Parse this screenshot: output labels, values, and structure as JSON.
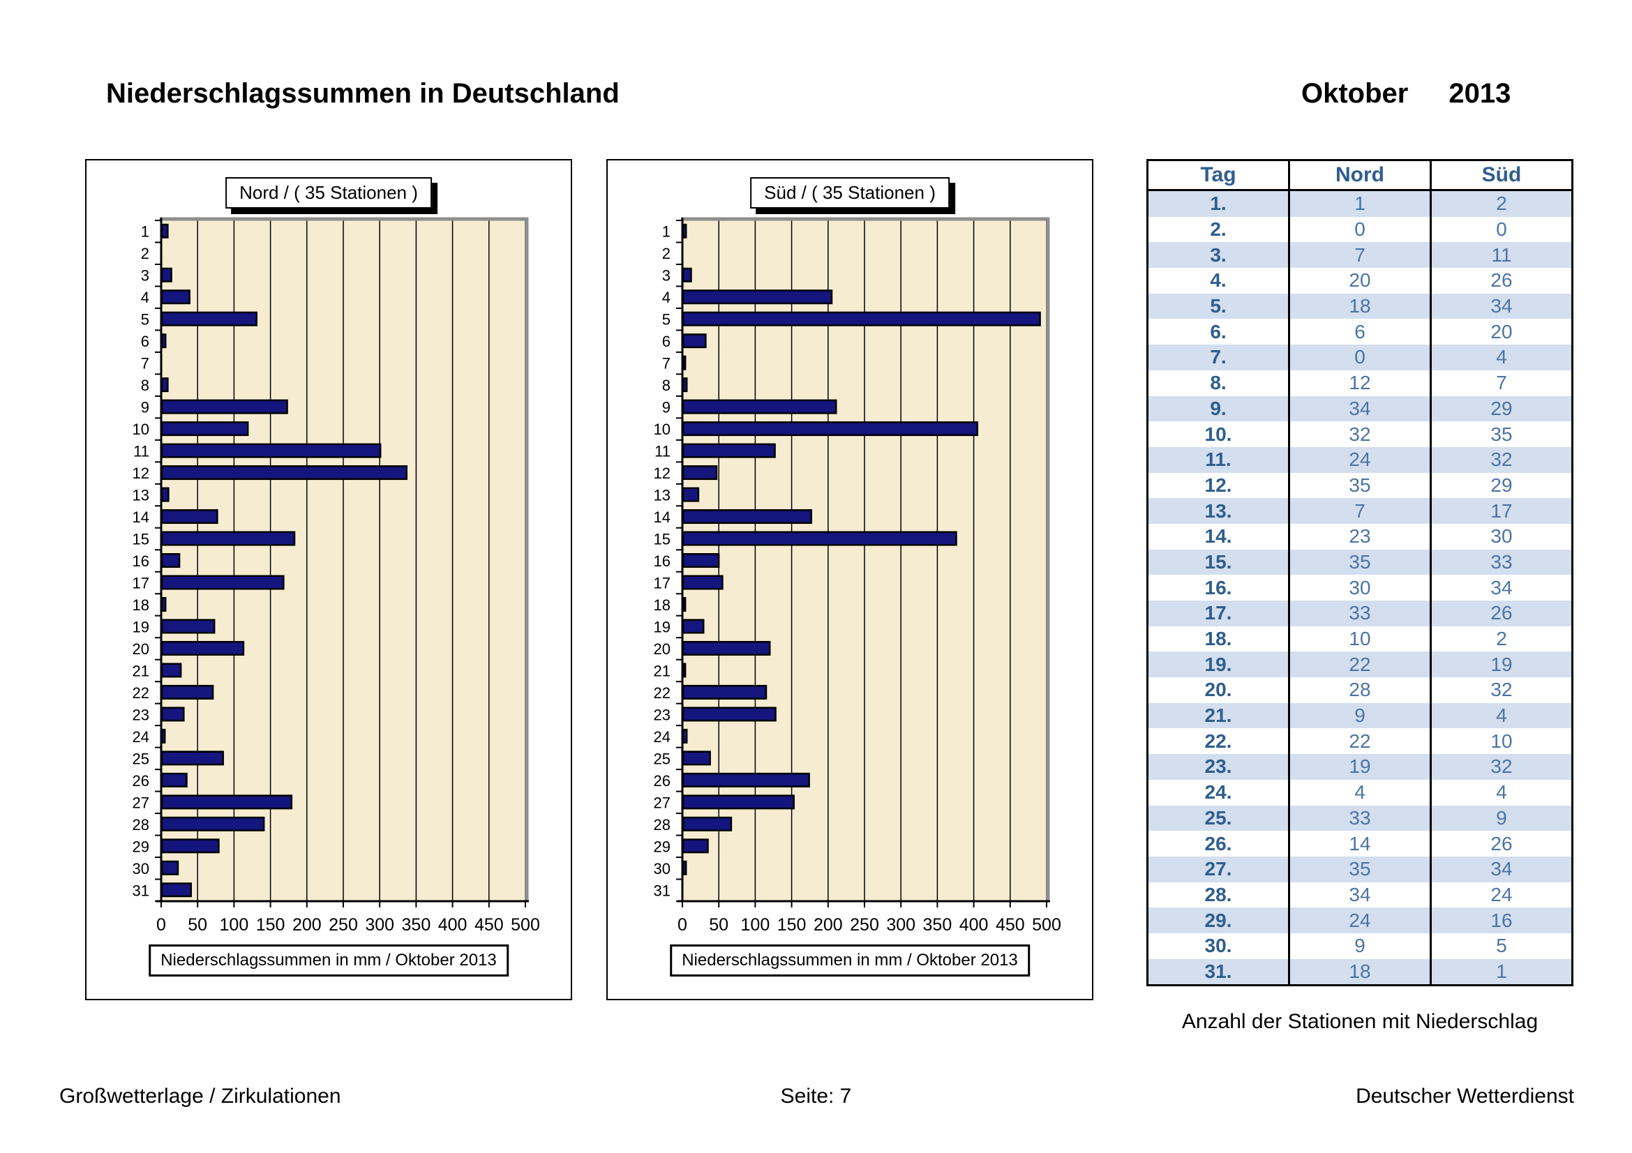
{
  "header": {
    "title": "Niederschlagssummen in Deutschland",
    "month": "Oktober",
    "year": "2013"
  },
  "chart_data": [
    {
      "type": "bar",
      "orientation": "horizontal",
      "title": "Nord / ( 35 Stationen )",
      "xlabel": "Niederschlagssummen in mm / Oktober 2013",
      "xlim": [
        0,
        500
      ],
      "x_ticks": [
        0,
        50,
        100,
        150,
        200,
        250,
        300,
        350,
        400,
        450,
        500
      ],
      "grid": true,
      "categories": [
        1,
        2,
        3,
        4,
        5,
        6,
        7,
        8,
        9,
        10,
        11,
        12,
        13,
        14,
        15,
        16,
        17,
        18,
        19,
        20,
        21,
        22,
        23,
        24,
        25,
        26,
        27,
        28,
        29,
        30,
        31
      ],
      "values": [
        8,
        0,
        13,
        38,
        130,
        5,
        0,
        8,
        172,
        118,
        300,
        336,
        9,
        76,
        182,
        24,
        167,
        5,
        72,
        112,
        26,
        70,
        30,
        4,
        84,
        34,
        178,
        140,
        78,
        22,
        40
      ]
    },
    {
      "type": "bar",
      "orientation": "horizontal",
      "title": "Süd / ( 35 Stationen )",
      "xlabel": "Niederschlagssummen in mm / Oktober 2013",
      "xlim": [
        0,
        500
      ],
      "x_ticks": [
        0,
        50,
        100,
        150,
        200,
        250,
        300,
        350,
        400,
        450,
        500
      ],
      "grid": true,
      "categories": [
        1,
        2,
        3,
        4,
        5,
        6,
        7,
        8,
        9,
        10,
        11,
        12,
        13,
        14,
        15,
        16,
        17,
        18,
        19,
        20,
        21,
        22,
        23,
        24,
        25,
        26,
        27,
        28,
        29,
        30,
        31
      ],
      "values": [
        4,
        0,
        11,
        204,
        490,
        31,
        3,
        5,
        210,
        404,
        126,
        46,
        21,
        176,
        375,
        49,
        54,
        3,
        28,
        119,
        3,
        114,
        127,
        5,
        37,
        173,
        152,
        66,
        34,
        4,
        0
      ]
    }
  ],
  "table": {
    "headers": [
      "Tag",
      "Nord",
      "Süd"
    ],
    "rows": [
      [
        "1.",
        1,
        2
      ],
      [
        "2.",
        0,
        0
      ],
      [
        "3.",
        7,
        11
      ],
      [
        "4.",
        20,
        26
      ],
      [
        "5.",
        18,
        34
      ],
      [
        "6.",
        6,
        20
      ],
      [
        "7.",
        0,
        4
      ],
      [
        "8.",
        12,
        7
      ],
      [
        "9.",
        34,
        29
      ],
      [
        "10.",
        32,
        35
      ],
      [
        "11.",
        24,
        32
      ],
      [
        "12.",
        35,
        29
      ],
      [
        "13.",
        7,
        17
      ],
      [
        "14.",
        23,
        30
      ],
      [
        "15.",
        35,
        33
      ],
      [
        "16.",
        30,
        34
      ],
      [
        "17.",
        33,
        26
      ],
      [
        "18.",
        10,
        2
      ],
      [
        "19.",
        22,
        19
      ],
      [
        "20.",
        28,
        32
      ],
      [
        "21.",
        9,
        4
      ],
      [
        "22.",
        22,
        10
      ],
      [
        "23.",
        19,
        32
      ],
      [
        "24.",
        4,
        4
      ],
      [
        "25.",
        33,
        9
      ],
      [
        "26.",
        14,
        26
      ],
      [
        "27.",
        35,
        34
      ],
      [
        "28.",
        34,
        24
      ],
      [
        "29.",
        24,
        16
      ],
      [
        "30.",
        9,
        5
      ],
      [
        "31.",
        18,
        1
      ]
    ],
    "caption": "Anzahl der Stationen mit Niederschlag"
  },
  "footer": {
    "left": "Großwetterlage / Zirkulationen",
    "center": "Seite: 7",
    "right": "Deutscher Wetterdienst"
  },
  "colors": {
    "bar": "#15157e",
    "bar_border": "#000000",
    "plot_bg": "#f6ecd2",
    "grid": "#000000",
    "plot_shadow_border": "#8e8e8e",
    "table_stripe": "#d3deee",
    "table_header_text": "#2f5e8e",
    "table_value_text": "#4c74a4"
  }
}
